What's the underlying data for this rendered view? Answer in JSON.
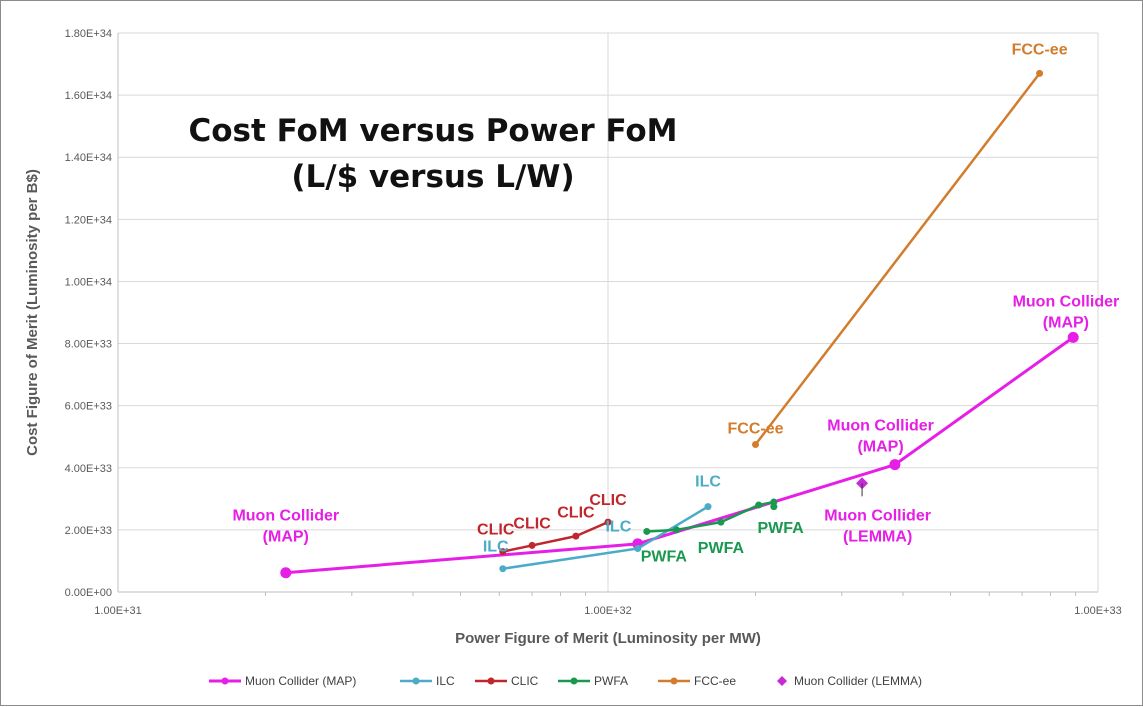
{
  "chart_data": {
    "type": "line",
    "title_lines": [
      "Cost FoM versus Power FoM",
      "(L/$ versus L/W)"
    ],
    "xlabel": "Power Figure of Merit (Luminosity per MW)",
    "ylabel": "Cost Figure of Merit (Luminosity per B$)",
    "x_scale": "log",
    "xlim": [
      1e+31,
      1e+33
    ],
    "ylim": [
      0,
      1.8e+34
    ],
    "x_ticks": [
      1e+31,
      1e+32,
      1e+33
    ],
    "x_tick_labels": [
      "1.00E+31",
      "1.00E+32",
      "1.00E+33"
    ],
    "y_ticks": [
      0,
      2e+33,
      4e+33,
      6e+33,
      8e+33,
      1e+34,
      1.2e+34,
      1.4e+34,
      1.6e+34,
      1.8e+34
    ],
    "y_tick_labels": [
      "0.00E+00",
      "2.00E+33",
      "4.00E+33",
      "6.00E+33",
      "8.00E+33",
      "1.00E+34",
      "1.20E+34",
      "1.40E+34",
      "1.60E+34",
      "1.80E+34"
    ],
    "grid": true,
    "legend_position": "bottom",
    "series": [
      {
        "name": "Muon Collider (MAP)",
        "color": "#e61ee6",
        "marker": "circle",
        "line": true,
        "x": [
          2.2e+31,
          1.15e+32,
          3.85e+32,
          8.9e+32
        ],
        "y": [
          6.2e+32,
          1.55e+33,
          4.1e+33,
          8.2e+33
        ]
      },
      {
        "name": "ILC",
        "color": "#4aacc6",
        "marker": "circle",
        "line": true,
        "x": [
          6.1e+31,
          1.15e+32,
          1.6e+32
        ],
        "y": [
          7.5e+32,
          1.4e+33,
          2.75e+33
        ]
      },
      {
        "name": "CLIC",
        "color": "#c0272d",
        "marker": "circle",
        "line": true,
        "x": [
          6.1e+31,
          7e+31,
          8.6e+31,
          1e+32
        ],
        "y": [
          1.3e+33,
          1.5e+33,
          1.8e+33,
          2.25e+33
        ]
      },
      {
        "name": "PWFA",
        "color": "#1b9850",
        "marker": "circle",
        "line": true,
        "x": [
          1.2e+32,
          1.38e+32,
          1.7e+32,
          2.03e+32,
          2.18e+32,
          2.18e+32
        ],
        "y": [
          1.95e+33,
          2e+33,
          2.25e+33,
          2.8e+33,
          2.9e+33,
          2.75e+33
        ]
      },
      {
        "name": "FCC-ee",
        "color": "#d27d2d",
        "marker": "circle",
        "line": true,
        "x": [
          2e+32,
          7.6e+32
        ],
        "y": [
          4.75e+33,
          1.67e+34
        ]
      },
      {
        "name": "Muon Collider (LEMMA)",
        "color": "#c62ad6",
        "marker": "diamond",
        "line": false,
        "x": [
          3.3e+32
        ],
        "y": [
          3.5e+33
        ]
      }
    ],
    "annotations": [
      {
        "lines": [
          "FCC-ee"
        ],
        "color": "#d27d2d",
        "x": 7.6e+32,
        "y": 1.73e+34
      },
      {
        "lines": [
          "Muon Collider",
          "(MAP)"
        ],
        "color": "#e61ee6",
        "x": 8.6e+32,
        "y": 9.2e+33
      },
      {
        "lines": [
          "FCC-ee"
        ],
        "color": "#d27d2d",
        "x": 2e+32,
        "y": 5.1e+33
      },
      {
        "lines": [
          "Muon Collider",
          "(MAP)"
        ],
        "color": "#e61ee6",
        "x": 3.6e+32,
        "y": 5.2e+33
      },
      {
        "lines": [
          "ILC"
        ],
        "color": "#4aacc6",
        "x": 1.6e+32,
        "y": 3.4e+33
      },
      {
        "lines": [
          "CLIC"
        ],
        "color": "#c0272d",
        "x": 1e+32,
        "y": 2.8e+33
      },
      {
        "lines": [
          "CLIC"
        ],
        "color": "#c0272d",
        "x": 8.6e+31,
        "y": 2.4e+33
      },
      {
        "lines": [
          "CLIC"
        ],
        "color": "#c0272d",
        "x": 7e+31,
        "y": 2.05e+33
      },
      {
        "lines": [
          "CLIC"
        ],
        "color": "#c0272d",
        "x": 5.9e+31,
        "y": 1.85e+33
      },
      {
        "lines": [
          "ILC"
        ],
        "color": "#4aacc6",
        "x": 5.9e+31,
        "y": 1.3e+33
      },
      {
        "lines": [
          "ILC"
        ],
        "color": "#4aacc6",
        "x": 1.05e+32,
        "y": 1.95e+33
      },
      {
        "lines": [
          "PWFA"
        ],
        "color": "#1b9850",
        "x": 1.3e+32,
        "y": 9.8e+32
      },
      {
        "lines": [
          "PWFA"
        ],
        "color": "#1b9850",
        "x": 1.7e+32,
        "y": 1.25e+33
      },
      {
        "lines": [
          "PWFA"
        ],
        "color": "#1b9850",
        "x": 2.25e+32,
        "y": 1.9e+33
      },
      {
        "lines": [
          "Muon Collider",
          "(LEMMA)"
        ],
        "color": "#e61ee6",
        "x": 3.55e+32,
        "y": 2.3e+33
      },
      {
        "lines": [
          "Muon Collider",
          "(MAP)"
        ],
        "color": "#e61ee6",
        "x": 2.2e+31,
        "y": 2.3e+33
      }
    ]
  }
}
